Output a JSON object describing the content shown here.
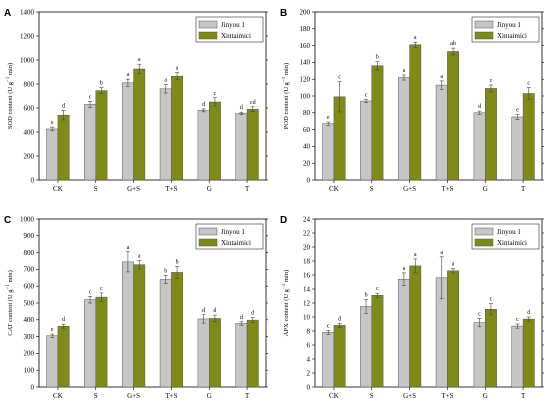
{
  "colors": {
    "series1": "#c6c6c6",
    "series2": "#7f8a17",
    "edge": "#555555"
  },
  "chart_data": [
    {
      "panel": "A",
      "type": "bar",
      "ylabel_main": "SOD content (U g",
      "ylabel_sup": "−1",
      "ylabel_end": " min)",
      "ylim": [
        0,
        1400
      ],
      "yticks": [
        0,
        200,
        400,
        600,
        800,
        1000,
        1200,
        1400
      ],
      "categories": [
        "CK",
        "S",
        "G+S",
        "T+S",
        "G",
        "T"
      ],
      "legend_position": "top-right",
      "series": [
        {
          "name": "Jinyou 1",
          "values": [
            425,
            630,
            810,
            760,
            580,
            555
          ],
          "errors": [
            15,
            25,
            30,
            35,
            12,
            10
          ],
          "letters": [
            "e",
            "c",
            "a",
            "a",
            "d",
            "d"
          ]
        },
        {
          "name": "Xintaimici",
          "values": [
            540,
            745,
            925,
            865,
            650,
            590
          ],
          "errors": [
            40,
            25,
            40,
            30,
            35,
            20
          ],
          "letters": [
            "d",
            "b",
            "a",
            "a",
            "c",
            "cd"
          ]
        }
      ]
    },
    {
      "panel": "B",
      "type": "bar",
      "ylabel_main": "POD content (U g",
      "ylabel_sup": "−1",
      "ylabel_end": " min)",
      "ylim": [
        0,
        200
      ],
      "yticks": [
        0,
        20,
        40,
        60,
        80,
        100,
        120,
        140,
        160,
        180,
        200
      ],
      "categories": [
        "CK",
        "S",
        "G+S",
        "T+S",
        "G",
        "T"
      ],
      "legend_position": "top-right",
      "series": [
        {
          "name": "Jinyou 1",
          "values": [
            67,
            94,
            122,
            113,
            80,
            75
          ],
          "errors": [
            2,
            2,
            3,
            5,
            2,
            3
          ],
          "letters": [
            "e",
            "c",
            "a",
            "a",
            "d",
            "e"
          ]
        },
        {
          "name": "Xintaimici",
          "values": [
            99,
            136,
            161,
            153,
            109,
            103
          ],
          "errors": [
            18,
            5,
            3,
            4,
            4,
            7
          ],
          "letters": [
            "c",
            "b",
            "a",
            "ab",
            "c",
            "c"
          ]
        }
      ]
    },
    {
      "panel": "C",
      "type": "bar",
      "ylabel_main": "CAT content (U g",
      "ylabel_sup": "−1",
      "ylabel_end": " min)",
      "ylim": [
        0,
        1000
      ],
      "yticks": [
        0,
        100,
        200,
        300,
        400,
        500,
        600,
        700,
        800,
        900,
        1000
      ],
      "categories": [
        "CK",
        "S",
        "G+S",
        "T+S",
        "G",
        "T"
      ],
      "legend_position": "top-right",
      "series": [
        {
          "name": "Jinyou 1",
          "values": [
            305,
            520,
            745,
            640,
            405,
            378
          ],
          "errors": [
            10,
            20,
            60,
            25,
            25,
            10
          ],
          "letters": [
            "e",
            "c",
            "a",
            "b",
            "d",
            "d"
          ]
        },
        {
          "name": "Xintaimici",
          "values": [
            362,
            535,
            728,
            682,
            408,
            398
          ],
          "errors": [
            12,
            25,
            25,
            35,
            20,
            15
          ],
          "letters": [
            "d",
            "c",
            "a",
            "b",
            "d",
            "d"
          ]
        }
      ]
    },
    {
      "panel": "D",
      "type": "bar",
      "ylabel_main": "APX content (U g",
      "ylabel_sup": "−1",
      "ylabel_end": " min)",
      "ylim": [
        0,
        24
      ],
      "yticks": [
        0,
        2,
        4,
        6,
        8,
        10,
        12,
        14,
        16,
        18,
        20,
        22,
        24
      ],
      "categories": [
        "CK",
        "S",
        "G+S",
        "T+S",
        "G",
        "T"
      ],
      "legend_position": "top-right",
      "series": [
        {
          "name": "Jinyou 1",
          "values": [
            7.8,
            11.5,
            15.4,
            15.6,
            9.2,
            8.7
          ],
          "errors": [
            0.3,
            1.0,
            0.9,
            3.0,
            0.6,
            0.3
          ],
          "letters": [
            "c",
            "b",
            "a",
            "a",
            "c",
            "c"
          ]
        },
        {
          "name": "Xintaimici",
          "values": [
            8.8,
            13.1,
            17.3,
            16.6,
            11.1,
            9.7
          ],
          "errors": [
            0.3,
            0.3,
            1.0,
            0.3,
            0.8,
            0.3
          ],
          "letters": [
            "d",
            "c",
            "a",
            "a",
            "c",
            "d"
          ]
        }
      ]
    }
  ]
}
